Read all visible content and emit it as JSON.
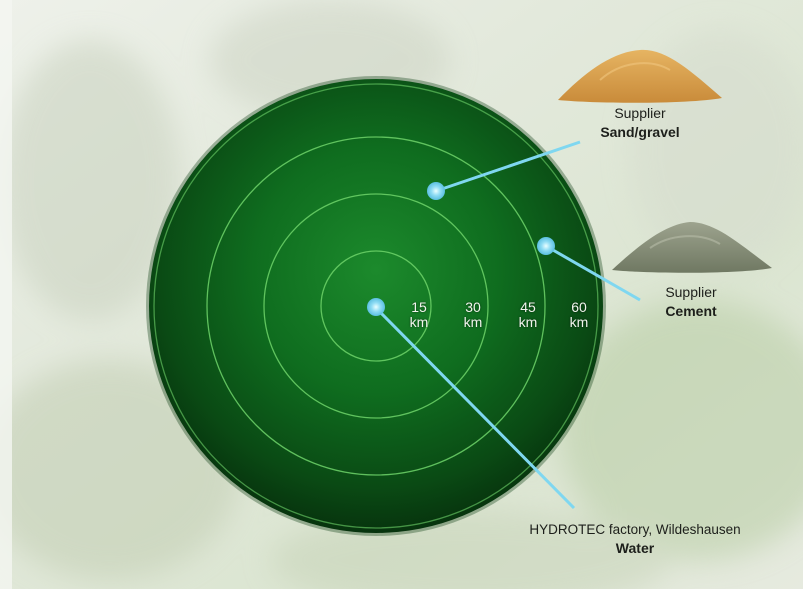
{
  "colors": {
    "radar_green": "#0f6a1e",
    "ring": "#6fd46a",
    "marker": "#8fdcf4",
    "connector": "#7fd7f0"
  },
  "rings": [
    {
      "label": "15",
      "unit": "km"
    },
    {
      "label": "30",
      "unit": "km"
    },
    {
      "label": "45",
      "unit": "km"
    },
    {
      "label": "60",
      "unit": "km"
    }
  ],
  "callouts": {
    "sand": {
      "kind": "Supplier",
      "what": "Sand/gravel",
      "icon": "sand-pile-icon"
    },
    "cement": {
      "kind": "Supplier",
      "what": "Cement",
      "icon": "cement-pile-icon"
    },
    "factory": {
      "kind": "HYDROTEC factory, Wildeshausen",
      "what": "Water"
    }
  }
}
